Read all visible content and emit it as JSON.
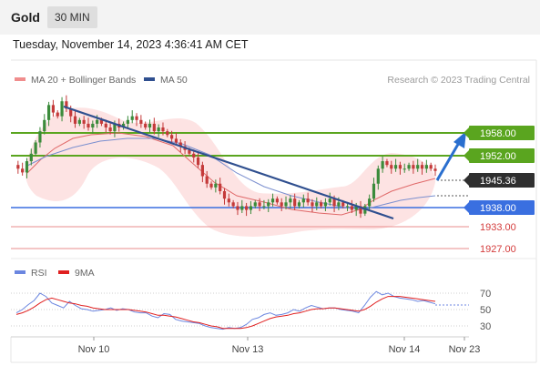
{
  "header": {
    "symbol": "Gold",
    "timeframe": "30 MIN",
    "datetime": "Tuesday, November 14, 2023 4:36:41 AM CET"
  },
  "legend": {
    "bollinger": "MA 20 + Bollinger Bands",
    "ma50": "MA 50",
    "credit": "Research © 2023 Trading Central"
  },
  "rsi_legend": {
    "rsi": "RSI",
    "ma9": "9MA"
  },
  "colors": {
    "resistance": "#5aa51f",
    "support_blue": "#3a6fe0",
    "support_red": "#e0585a",
    "price_bg": "#2f2f2f",
    "bull_candle": "#3b8b3b",
    "bear_candle": "#c43a3a",
    "ma50": "#2f4f8f",
    "trend": "#2f4f8f",
    "bollinger_fill": "#fde3e3"
  },
  "chart_data": [
    {
      "type": "candlestick",
      "title": "Gold 30 MIN",
      "ylim": [
        1922,
        1975
      ],
      "x_ticks": [
        "Nov 10",
        "Nov 13",
        "Nov 14",
        "Nov 23"
      ],
      "series": [
        {
          "name": "MA 20 + Bollinger Bands"
        },
        {
          "name": "MA 50"
        }
      ],
      "levels": [
        {
          "value": 1958.0,
          "label": "1958.00",
          "kind": "resistance"
        },
        {
          "value": 1952.0,
          "label": "1952.00",
          "kind": "resistance"
        },
        {
          "value": 1945.36,
          "label": "1945.36",
          "kind": "current"
        },
        {
          "value": 1938.0,
          "label": "1938.00",
          "kind": "support"
        },
        {
          "value": 1933.0,
          "label": "1933.00",
          "kind": "support"
        },
        {
          "value": 1927.0,
          "label": "1927.00",
          "kind": "support"
        }
      ],
      "close_path": [
        1947,
        1946,
        1945,
        1948,
        1950,
        1953,
        1956,
        1959,
        1963,
        1961,
        1960,
        1964,
        1962,
        1960,
        1958,
        1959,
        1958,
        1957,
        1958,
        1959,
        1958,
        1957,
        1956,
        1958,
        1957,
        1958,
        1959,
        1960,
        1959,
        1958,
        1957,
        1958,
        1956,
        1957,
        1956,
        1955,
        1954,
        1953,
        1952,
        1951,
        1950,
        1949,
        1947,
        1944,
        1942,
        1941,
        1942,
        1940,
        1938,
        1937,
        1936,
        1935,
        1936,
        1935,
        1936,
        1937,
        1936,
        1936,
        1937,
        1938,
        1937,
        1936,
        1937,
        1938,
        1936,
        1937,
        1938,
        1937,
        1936,
        1937,
        1936,
        1937,
        1938,
        1936,
        1937,
        1936,
        1936,
        1935,
        1936,
        1934,
        1936,
        1938,
        1942,
        1946,
        1948,
        1947,
        1946,
        1947,
        1946,
        1946,
        1947,
        1946,
        1947,
        1946,
        1947,
        1946,
        1945.4
      ]
    },
    {
      "type": "line",
      "title": "RSI",
      "ylim": [
        20,
        80
      ],
      "y_ticks": [
        70,
        50,
        30
      ],
      "series": [
        {
          "name": "RSI",
          "values": [
            46,
            50,
            56,
            61,
            70,
            66,
            58,
            55,
            52,
            60,
            55,
            51,
            50,
            48,
            49,
            50,
            52,
            49,
            51,
            50,
            47,
            46,
            46,
            42,
            40,
            45,
            44,
            38,
            36,
            35,
            34,
            33,
            30,
            28,
            27,
            26,
            28,
            27,
            28,
            32,
            38,
            40,
            44,
            46,
            43,
            44,
            46,
            50,
            48,
            52,
            55,
            53,
            51,
            52,
            52,
            50,
            49,
            48,
            46,
            55,
            65,
            72,
            68,
            70,
            66,
            64,
            63,
            62,
            60,
            61,
            59,
            57
          ]
        },
        {
          "name": "9MA",
          "values": [
            44,
            46,
            49,
            53,
            58,
            62,
            64,
            62,
            60,
            58,
            57,
            55,
            54,
            52,
            51,
            50,
            50,
            50,
            50,
            50,
            49,
            48,
            47,
            45,
            43,
            43,
            42,
            41,
            39,
            37,
            35,
            34,
            32,
            30,
            29,
            27,
            27,
            27,
            27,
            28,
            30,
            33,
            36,
            39,
            41,
            42,
            43,
            45,
            46,
            48,
            50,
            51,
            51,
            52,
            52,
            51,
            50,
            49,
            48,
            50,
            54,
            59,
            63,
            66,
            66,
            66,
            65,
            64,
            63,
            62,
            61,
            60
          ]
        }
      ]
    }
  ]
}
